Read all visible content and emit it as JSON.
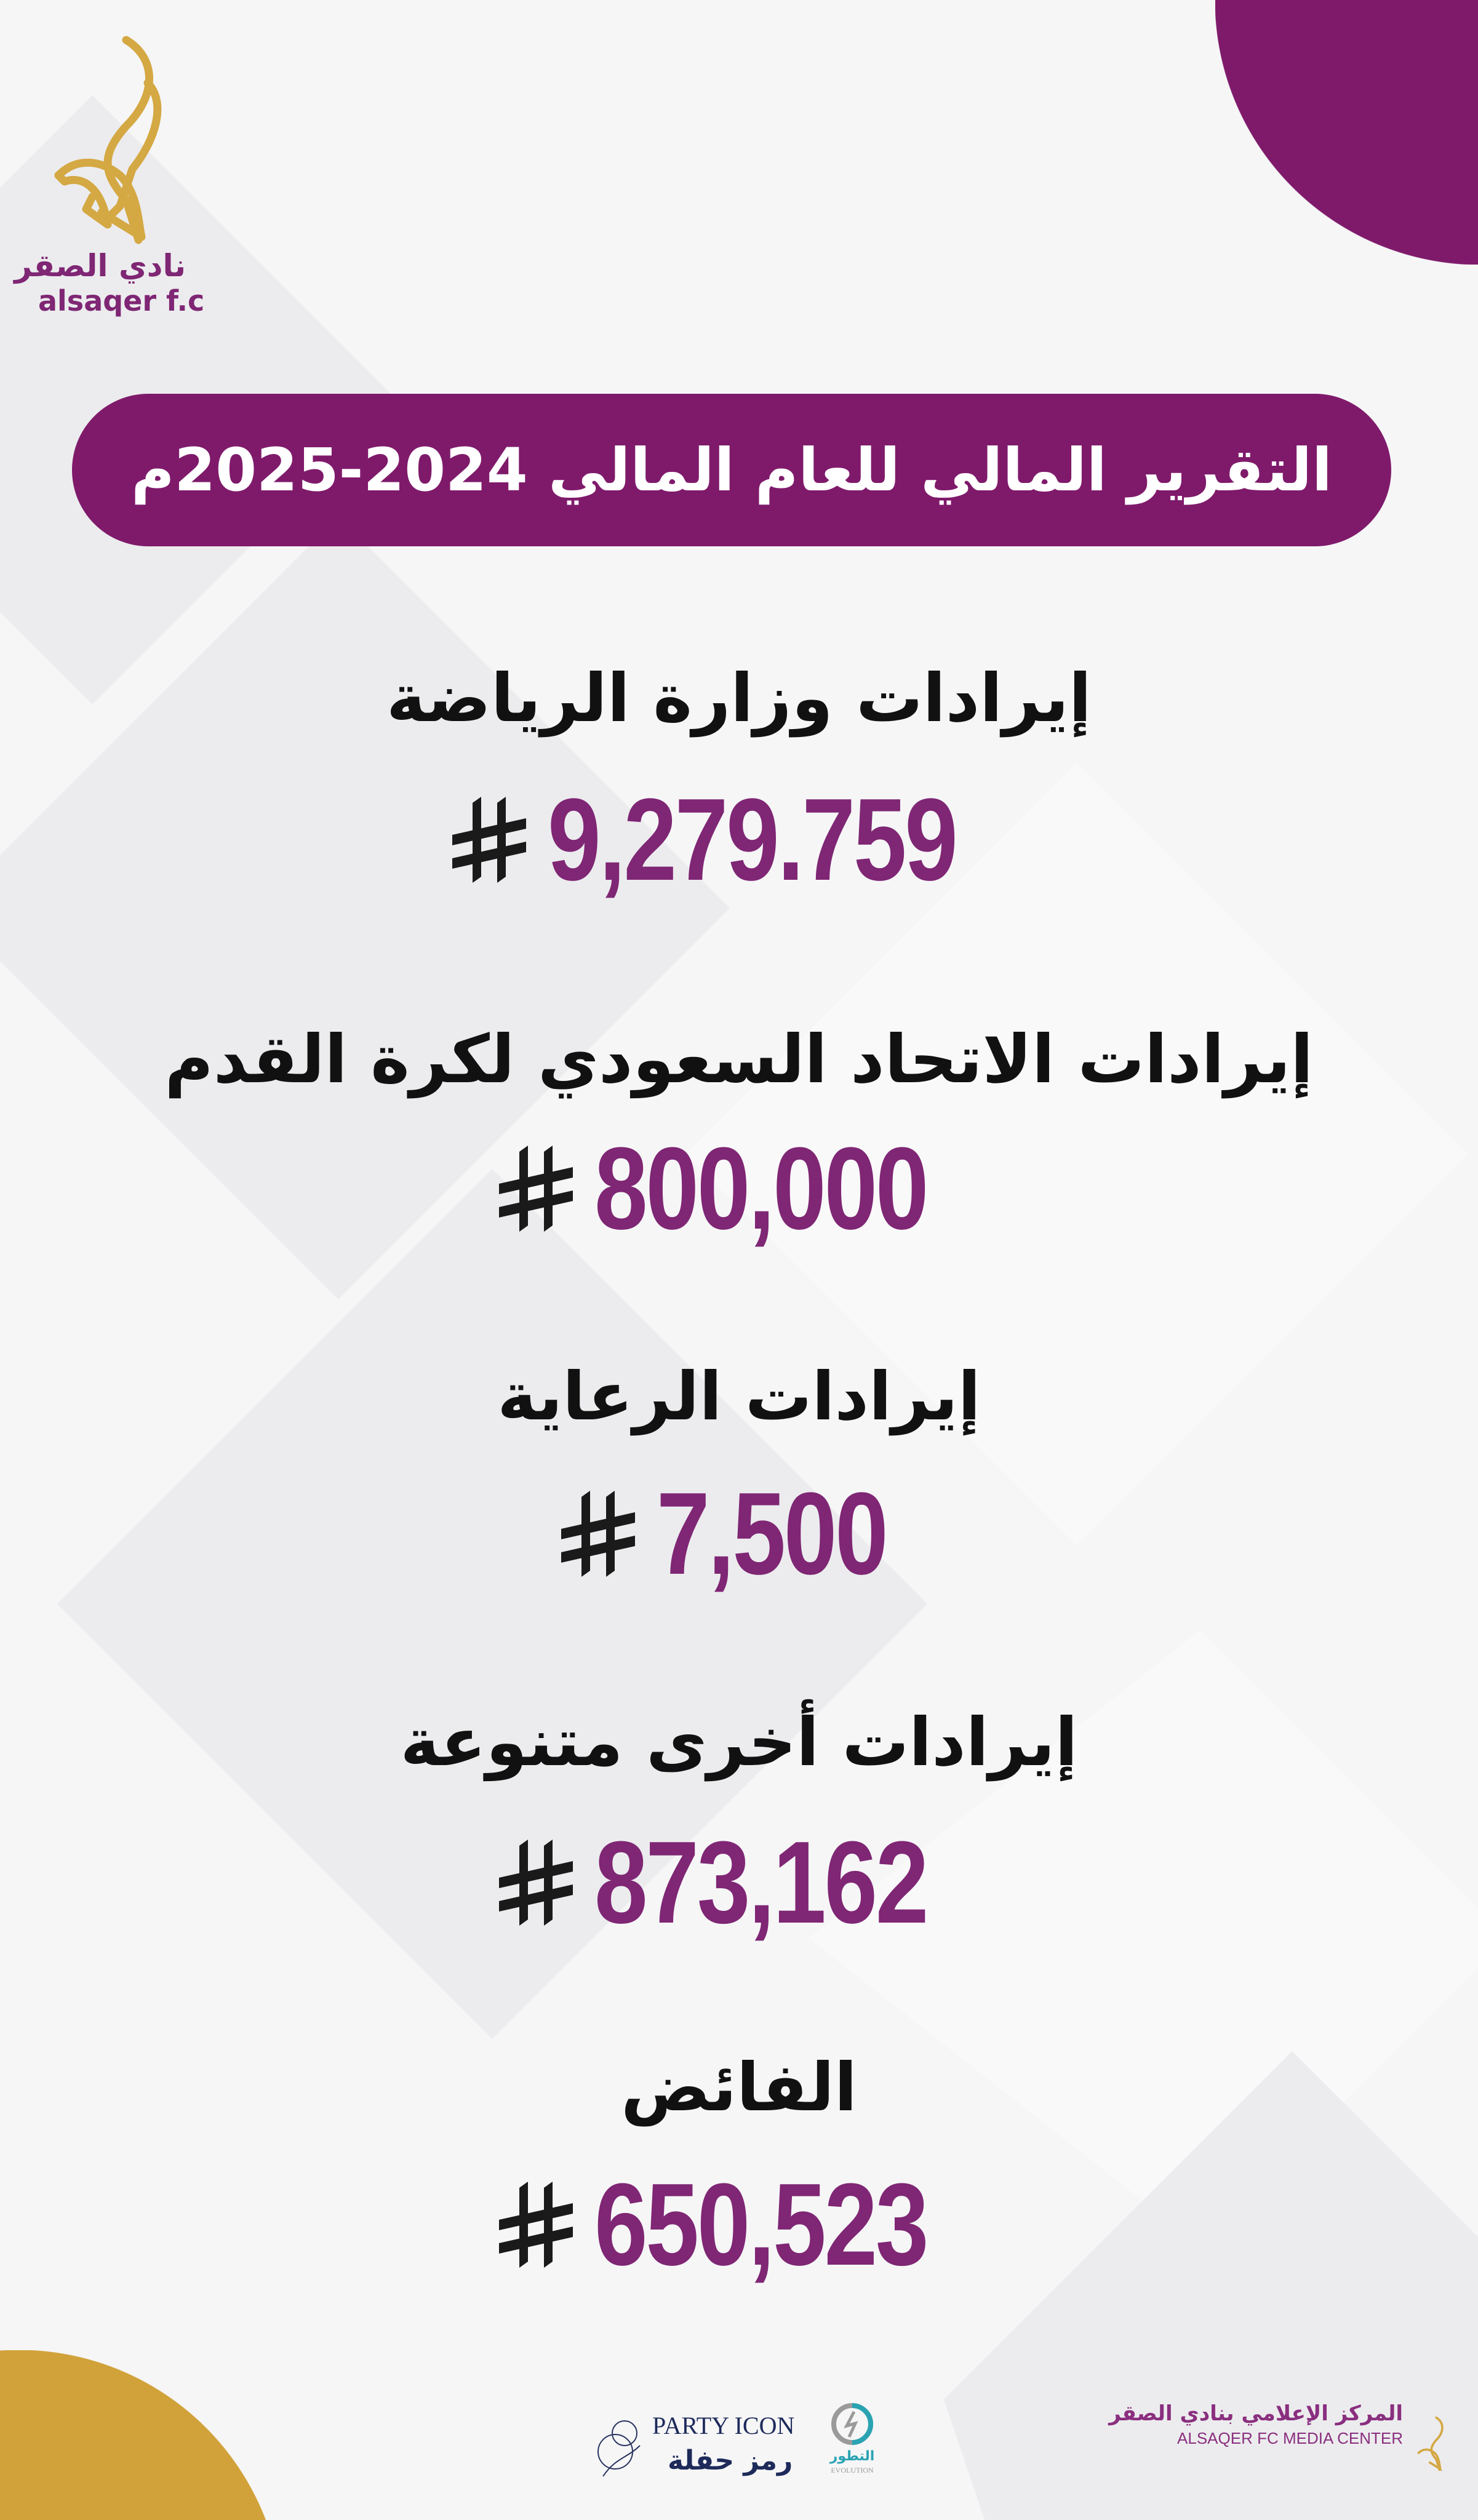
{
  "logo": {
    "arabic": "نادي الصقر",
    "english": "alsaqer f.c"
  },
  "title": "التقرير المالي للعام المالي  2024-2025م",
  "currency_icon": "saudi-riyal-symbol",
  "items": [
    {
      "label": "إيرادات وزارة الرياضة",
      "amount": "9,279.759"
    },
    {
      "label": "إيرادات الاتحاد السعودي لكرة القدم",
      "amount": "800,000"
    },
    {
      "label": "إيرادات الرعاية",
      "amount": "7,500"
    },
    {
      "label": "إيرادات أخرى متنوعة",
      "amount": "873,162"
    },
    {
      "label": "الفائض",
      "amount": "650,523"
    }
  ],
  "footer": {
    "party_icon_en": "PARTY ICON",
    "party_icon_ar": "رمز حفلة",
    "evolution_ar": "التطور",
    "evolution_en": "EVOLUTION",
    "media_center_ar": "المركز الإعلامي بنادي الصقر",
    "media_center_en": "ALSAQER FC MEDIA CENTER"
  },
  "colors": {
    "purple": "#7f1a6b",
    "amount_purple": "#7f2674",
    "gold": "#d1a23a",
    "background": "#f6f6f7"
  }
}
